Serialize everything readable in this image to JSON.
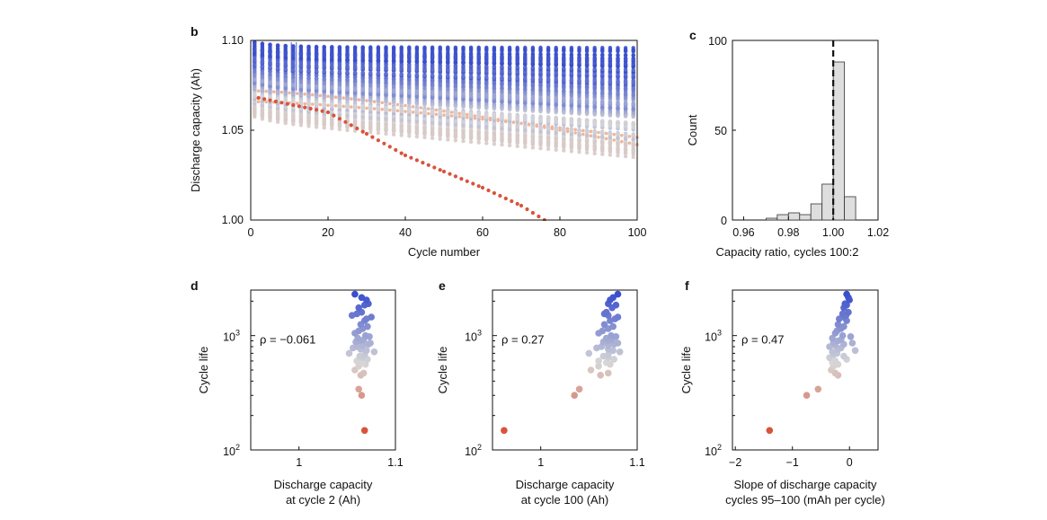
{
  "colors": {
    "cold": "#3a4fcc",
    "mid": "#d7d7d7",
    "hot": "#d9533b",
    "bar_fill": "#dedede",
    "axis": "#111111"
  },
  "chart_data": [
    {
      "panel": "b",
      "type": "scatter",
      "xlabel": "Cycle number",
      "ylabel": "Discharge capacity (Ah)",
      "xlim": [
        0,
        100
      ],
      "ylim": [
        1.0,
        1.1
      ],
      "xticks": [
        0,
        20,
        40,
        60,
        80,
        100
      ],
      "yticks": [
        "1.00",
        "1.05",
        "1.10"
      ],
      "series_count": 124,
      "highlighted_series": {
        "x": [
          2,
          20,
          30,
          40,
          50,
          60,
          70,
          76
        ],
        "y": [
          1.068,
          1.06,
          1.048,
          1.036,
          1.027,
          1.018,
          1.008,
          1.0
        ]
      },
      "capacity_range_cycle2": [
        1.05,
        1.097
      ],
      "capacity_range_cycle100": [
        1.033,
        1.096
      ]
    },
    {
      "panel": "c",
      "type": "bar",
      "xlabel": "Capacity ratio, cycles 100:2",
      "ylabel": "Count",
      "xlim": [
        0.955,
        1.02
      ],
      "ylim": [
        0,
        100
      ],
      "xticks": [
        "0.96",
        "0.98",
        "1.00",
        "1.02"
      ],
      "yticks": [
        "0",
        "50",
        "100"
      ],
      "bin_edges": [
        0.97,
        0.975,
        0.98,
        0.985,
        0.99,
        0.995,
        1.0,
        1.005,
        1.01
      ],
      "counts": [
        1,
        3,
        4,
        3,
        9,
        20,
        88,
        13
      ],
      "reference_line": 1.0
    },
    {
      "panel": "d",
      "type": "scatter",
      "xlabel_line1": "Discharge capacity",
      "xlabel_line2": "at cycle 2 (Ah)",
      "ylabel": "Cycle life",
      "annotation": "ρ = −0.061",
      "xlim": [
        0.95,
        1.1
      ],
      "xticks": [
        "1",
        "1.1"
      ],
      "yscale": "log",
      "ylim": [
        100,
        2500
      ],
      "yticks": [
        {
          "base": "10",
          "exp": "2",
          "value": 100
        },
        {
          "base": "10",
          "exp": "3",
          "value": 1000
        }
      ],
      "x": [
        1.058,
        1.065,
        1.07,
        1.072,
        1.068,
        1.062,
        1.065,
        1.06,
        1.055,
        1.075,
        1.07,
        1.068,
        1.064,
        1.071,
        1.066,
        1.062,
        1.058,
        1.069,
        1.073,
        1.061,
        1.067,
        1.063,
        1.059,
        1.074,
        1.072,
        1.066,
        1.06,
        1.056,
        1.064,
        1.07,
        1.078,
        1.052,
        1.068,
        1.063,
        1.066,
        1.071,
        1.06,
        1.065,
        1.069,
        1.062,
        1.058,
        1.067,
        1.064,
        1.062,
        1.065,
        1.068
      ],
      "y": [
        2300,
        2150,
        2050,
        1900,
        1850,
        1750,
        1600,
        1550,
        1500,
        1450,
        1400,
        1350,
        1250,
        1200,
        1150,
        1100,
        1050,
        1000,
        980,
        950,
        920,
        900,
        880,
        860,
        840,
        820,
        800,
        780,
        760,
        740,
        720,
        700,
        680,
        660,
        640,
        620,
        600,
        580,
        560,
        540,
        500,
        470,
        450,
        340,
        300,
        148
      ]
    },
    {
      "panel": "e",
      "type": "scatter",
      "xlabel_line1": "Discharge capacity",
      "xlabel_line2": "at cycle 100 (Ah)",
      "ylabel": "Cycle life",
      "annotation": "ρ = 0.27",
      "xlim": [
        0.95,
        1.1
      ],
      "xticks": [
        "1",
        "1.1"
      ],
      "yscale": "log",
      "ylim": [
        100,
        2500
      ],
      "yticks": [
        {
          "base": "10",
          "exp": "2",
          "value": 100
        },
        {
          "base": "10",
          "exp": "3",
          "value": 1000
        }
      ],
      "x": [
        1.08,
        1.075,
        1.072,
        1.07,
        1.078,
        1.074,
        1.068,
        1.066,
        1.07,
        1.08,
        1.077,
        1.072,
        1.066,
        1.075,
        1.07,
        1.064,
        1.06,
        1.073,
        1.078,
        1.068,
        1.074,
        1.07,
        1.065,
        1.08,
        1.076,
        1.07,
        1.063,
        1.058,
        1.07,
        1.075,
        1.082,
        1.05,
        1.07,
        1.065,
        1.07,
        1.076,
        1.06,
        1.068,
        1.072,
        1.06,
        1.052,
        1.07,
        1.062,
        1.04,
        1.035,
        0.962
      ],
      "y": [
        2300,
        2150,
        2050,
        1900,
        1850,
        1750,
        1600,
        1550,
        1500,
        1450,
        1400,
        1350,
        1250,
        1200,
        1150,
        1100,
        1050,
        1000,
        980,
        950,
        920,
        900,
        880,
        860,
        840,
        820,
        800,
        780,
        760,
        740,
        720,
        700,
        680,
        660,
        640,
        620,
        600,
        580,
        560,
        540,
        500,
        470,
        450,
        340,
        300,
        148
      ]
    },
    {
      "panel": "f",
      "type": "scatter",
      "xlabel_line1": "Slope of discharge capacity",
      "xlabel_line2": "cycles 95–100 (mAh per cycle)",
      "ylabel": "Cycle life",
      "annotation": "ρ = 0.47",
      "xlim": [
        -2.05,
        0.5
      ],
      "xticks": [
        "−2",
        "−1",
        "0"
      ],
      "yscale": "log",
      "ylim": [
        100,
        2500
      ],
      "yticks": [
        {
          "base": "10",
          "exp": "2",
          "value": 100
        },
        {
          "base": "10",
          "exp": "3",
          "value": 1000
        }
      ],
      "x": [
        -0.05,
        -0.02,
        0.0,
        -0.08,
        -0.05,
        -0.1,
        -0.02,
        -0.12,
        -0.06,
        -0.1,
        -0.18,
        -0.05,
        -0.2,
        -0.1,
        -0.15,
        -0.22,
        -0.25,
        -0.12,
        0.02,
        -0.3,
        -0.15,
        -0.2,
        -0.28,
        0.05,
        -0.1,
        -0.25,
        -0.35,
        -0.15,
        -0.2,
        0.1,
        -0.3,
        -0.22,
        -0.28,
        -0.1,
        -0.35,
        -0.05,
        -0.25,
        -0.3,
        -0.2,
        -0.28,
        -0.32,
        -0.25,
        -0.2,
        -0.55,
        -0.75,
        -1.4
      ],
      "y": [
        2300,
        2150,
        2050,
        1900,
        1850,
        1750,
        1600,
        1550,
        1500,
        1450,
        1400,
        1350,
        1250,
        1200,
        1150,
        1100,
        1050,
        1000,
        980,
        950,
        920,
        900,
        880,
        860,
        840,
        820,
        800,
        780,
        760,
        740,
        720,
        700,
        680,
        660,
        640,
        620,
        600,
        580,
        560,
        540,
        500,
        470,
        450,
        340,
        300,
        148
      ]
    }
  ]
}
